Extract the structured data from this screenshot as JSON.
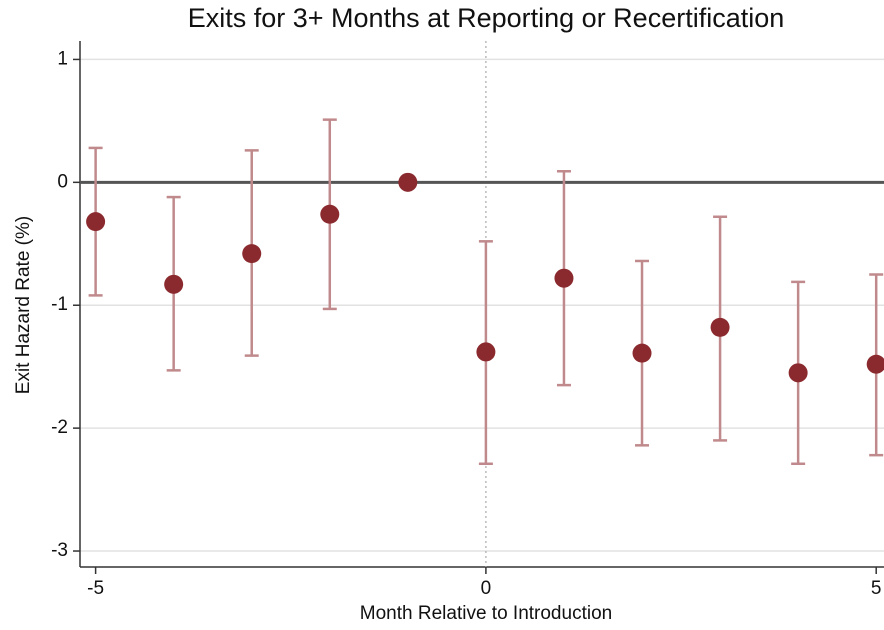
{
  "chart_data": {
    "type": "errorbar",
    "title": "Exits for 3+ Months at Reporting or Recertification",
    "x_label": "Month Relative to Introduction",
    "y_label": "Exit Hazard Rate (%)",
    "x": [
      -5,
      -4,
      -3,
      -2,
      -1,
      0,
      1,
      2,
      3,
      4,
      5
    ],
    "series": [
      {
        "color": "#8b2a2e",
        "bar_color": "#c08a8c",
        "values": [
          -0.32,
          -0.83,
          -0.58,
          -0.26,
          0,
          -1.38,
          -0.78,
          -1.39,
          -1.18,
          -1.55,
          -1.48
        ],
        "lower": [
          -0.92,
          -1.53,
          -1.41,
          -1.03,
          null,
          -2.29,
          -1.65,
          -2.14,
          -2.1,
          -2.29,
          -2.22
        ],
        "upper": [
          0.28,
          -0.12,
          0.26,
          0.51,
          null,
          -0.48,
          0.09,
          -0.64,
          -0.28,
          -0.81,
          -0.75
        ]
      }
    ],
    "xlim": [
      -5.2,
      5.1
    ],
    "ylim": [
      -3.13,
      1.15
    ],
    "xticks": [
      -5,
      0,
      5
    ],
    "yticks": [
      -3,
      -2,
      -1,
      0,
      1
    ],
    "grid": true,
    "hline": 0,
    "vline": 0
  }
}
